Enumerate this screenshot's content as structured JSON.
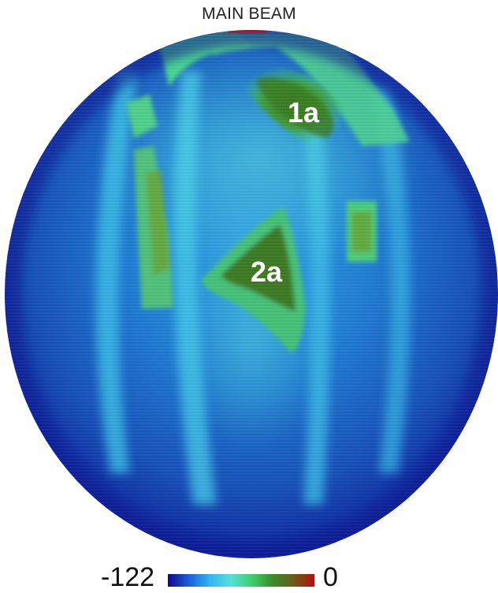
{
  "chart_data": {
    "type": "heatmap",
    "title": "MAIN BEAM",
    "projection": "sphere",
    "colorbar": {
      "min_label": "-122",
      "max_label": "0",
      "min": -122,
      "max": 0,
      "colors": [
        "#0a0a8c",
        "#1a5fd8",
        "#2fb7ee",
        "#55e0d8",
        "#3fcf6a",
        "#3a8a2a",
        "#6e5a18",
        "#b40f0f"
      ]
    },
    "annotations": [
      {
        "label": "1a",
        "text": "1a"
      },
      {
        "label": "2a",
        "text": "2a"
      }
    ]
  }
}
